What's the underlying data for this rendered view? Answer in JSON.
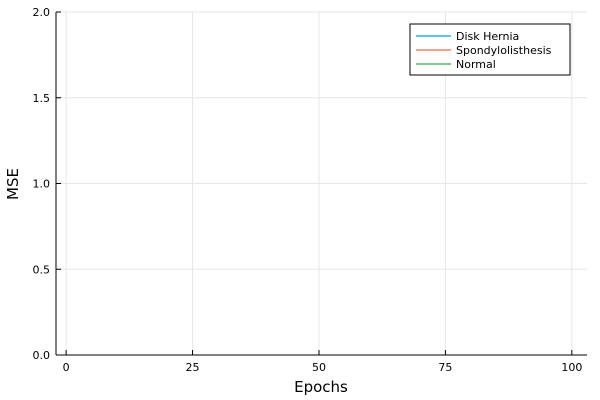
{
  "chart_data": {
    "type": "line",
    "title": "",
    "xlabel": "Epochs",
    "ylabel": "MSE",
    "xlim": [
      -2,
      103
    ],
    "ylim": [
      0,
      2
    ],
    "xticks": [
      0,
      25,
      50,
      75,
      100
    ],
    "xtick_labels": [
      "0",
      "25",
      "50",
      "75",
      "100"
    ],
    "yticks": [
      0,
      0.5,
      1,
      1.5,
      2
    ],
    "ytick_labels": [
      "0.0",
      "0.5",
      "1.0",
      "1.5",
      "2.0"
    ],
    "grid": true,
    "legend_position": "top-right",
    "series": [
      {
        "name": "Disk Hernia",
        "color": "#009AFA",
        "x": [],
        "y": []
      },
      {
        "name": "Spondylolisthesis",
        "color": "#E36F47",
        "x": [],
        "y": []
      },
      {
        "name": "Normal",
        "color": "#3EA44E",
        "x": [],
        "y": []
      }
    ]
  }
}
